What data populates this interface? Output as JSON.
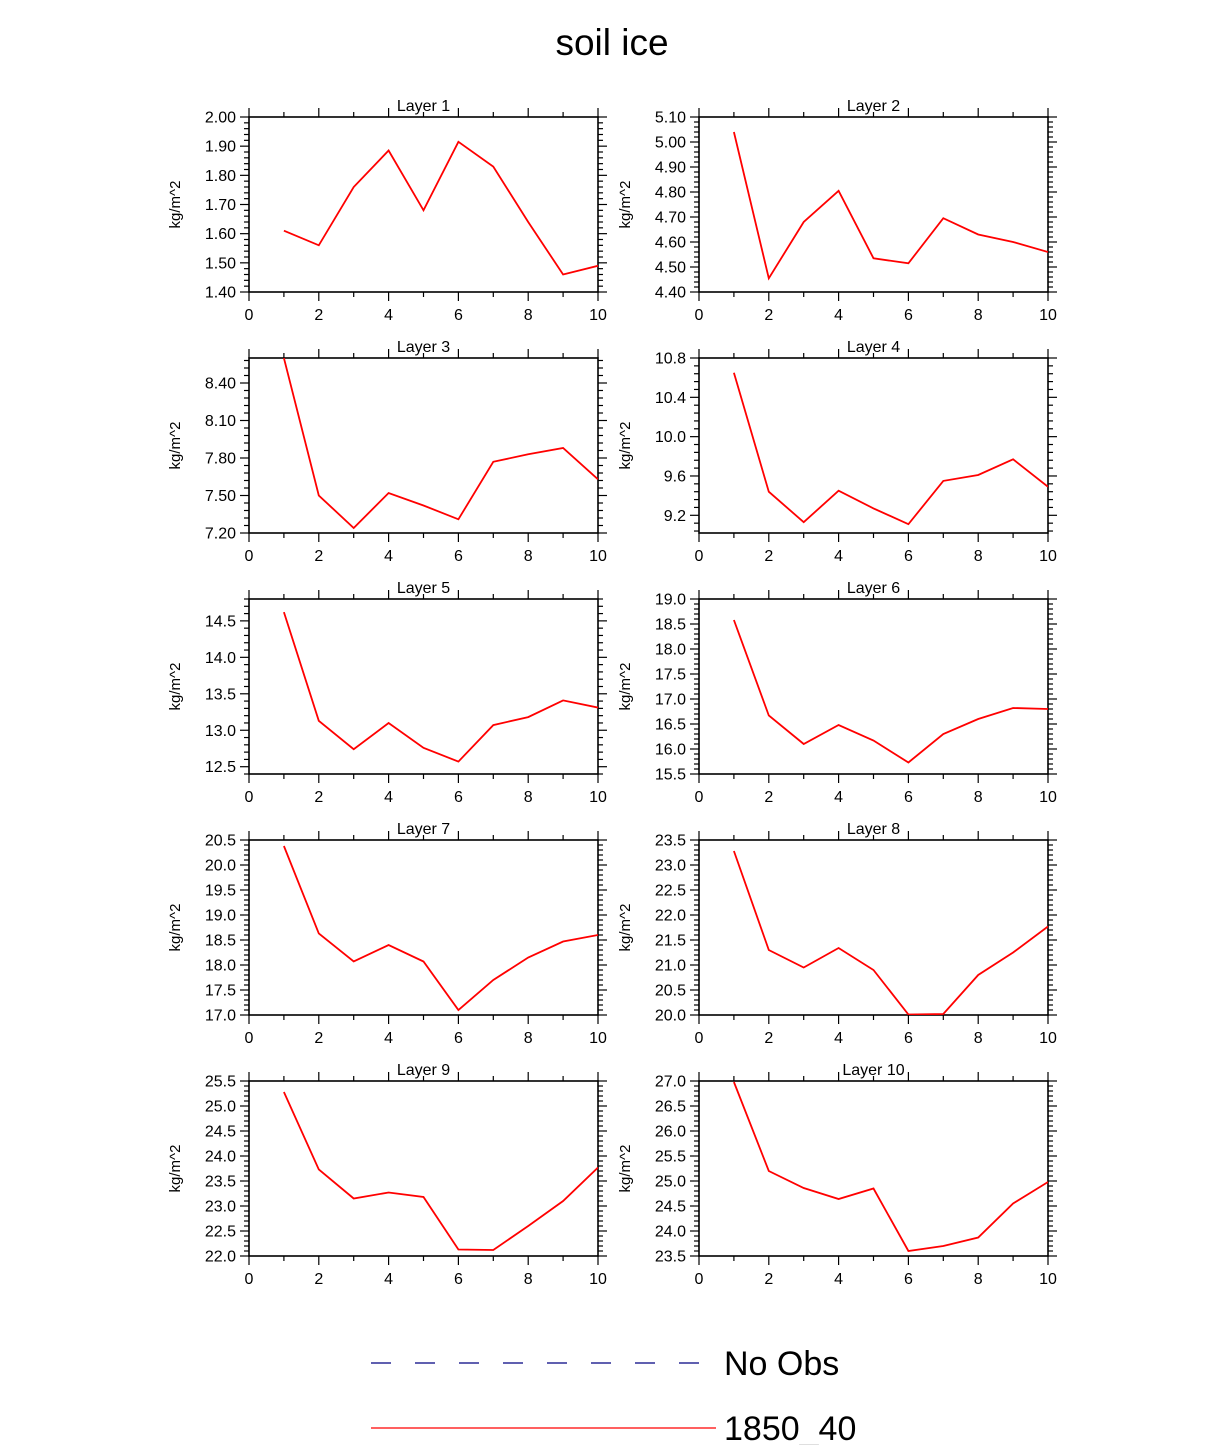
{
  "title": "soil ice",
  "colors": {
    "series": "#ff0000",
    "obs": "#000080",
    "axis": "#000000"
  },
  "chart_data": [
    {
      "type": "line",
      "title": "Layer 1",
      "ylabel": "kg/m^2",
      "xlim": [
        0,
        10
      ],
      "ylim": [
        1.4,
        2.0
      ],
      "xticks": [
        0,
        2,
        4,
        6,
        8,
        10
      ],
      "yticks": [
        1.4,
        1.5,
        1.6,
        1.7,
        1.8,
        1.9,
        2.0
      ],
      "ydecimals": 2,
      "series": [
        {
          "name": "1850_40",
          "x": [
            1,
            2,
            3,
            4,
            5,
            6,
            7,
            8,
            9,
            10
          ],
          "values": [
            1.61,
            1.56,
            1.76,
            1.885,
            1.68,
            1.915,
            1.83,
            1.64,
            1.46,
            1.49
          ]
        }
      ]
    },
    {
      "type": "line",
      "title": "Layer 2",
      "ylabel": "kg/m^2",
      "xlim": [
        0,
        10
      ],
      "ylim": [
        4.4,
        5.1
      ],
      "xticks": [
        0,
        2,
        4,
        6,
        8,
        10
      ],
      "yticks": [
        4.4,
        4.5,
        4.6,
        4.7,
        4.8,
        4.9,
        5.0,
        5.1
      ],
      "ydecimals": 2,
      "series": [
        {
          "name": "1850_40",
          "x": [
            1,
            2,
            3,
            4,
            5,
            6,
            7,
            8,
            9,
            10
          ],
          "values": [
            5.04,
            4.455,
            4.68,
            4.805,
            4.535,
            4.515,
            4.695,
            4.63,
            4.6,
            4.56
          ]
        }
      ]
    },
    {
      "type": "line",
      "title": "Layer 3",
      "ylabel": "kg/m^2",
      "xlim": [
        0,
        10
      ],
      "ylim": [
        7.2,
        8.6
      ],
      "xticks": [
        0,
        2,
        4,
        6,
        8,
        10
      ],
      "yticks": [
        7.2,
        7.5,
        7.8,
        8.1,
        8.4
      ],
      "ydecimals": 2,
      "series": [
        {
          "name": "1850_40",
          "x": [
            1,
            2,
            3,
            4,
            5,
            6,
            7,
            8,
            9,
            10
          ],
          "values": [
            8.6,
            7.5,
            7.24,
            7.52,
            7.42,
            7.31,
            7.77,
            7.83,
            7.88,
            7.63
          ]
        }
      ]
    },
    {
      "type": "line",
      "title": "Layer 4",
      "ylabel": "kg/m^2",
      "xlim": [
        0,
        10
      ],
      "ylim": [
        9.02,
        10.8
      ],
      "xticks": [
        0,
        2,
        4,
        6,
        8,
        10
      ],
      "yticks": [
        9.2,
        9.6,
        10.0,
        10.4,
        10.8
      ],
      "ydecimals": 1,
      "series": [
        {
          "name": "1850_40",
          "x": [
            1,
            2,
            3,
            4,
            5,
            6,
            7,
            8,
            9,
            10
          ],
          "values": [
            10.65,
            9.44,
            9.13,
            9.45,
            9.27,
            9.11,
            9.55,
            9.61,
            9.77,
            9.49
          ]
        }
      ]
    },
    {
      "type": "line",
      "title": "Layer 5",
      "ylabel": "kg/m^2",
      "xlim": [
        0,
        10
      ],
      "ylim": [
        12.4,
        14.8
      ],
      "xticks": [
        0,
        2,
        4,
        6,
        8,
        10
      ],
      "yticks": [
        12.5,
        13.0,
        13.5,
        14.0,
        14.5
      ],
      "ydecimals": 1,
      "series": [
        {
          "name": "1850_40",
          "x": [
            1,
            2,
            3,
            4,
            5,
            6,
            7,
            8,
            9,
            10
          ],
          "values": [
            14.62,
            13.13,
            12.74,
            13.1,
            12.76,
            12.57,
            13.07,
            13.18,
            13.41,
            13.31
          ]
        }
      ]
    },
    {
      "type": "line",
      "title": "Layer 6",
      "ylabel": "kg/m^2",
      "xlim": [
        0,
        10
      ],
      "ylim": [
        15.5,
        19.0
      ],
      "xticks": [
        0,
        2,
        4,
        6,
        8,
        10
      ],
      "yticks": [
        15.5,
        16.0,
        16.5,
        17.0,
        17.5,
        18.0,
        18.5,
        19.0
      ],
      "ydecimals": 1,
      "series": [
        {
          "name": "1850_40",
          "x": [
            1,
            2,
            3,
            4,
            5,
            6,
            7,
            8,
            9,
            10
          ],
          "values": [
            18.58,
            16.67,
            16.1,
            16.48,
            16.17,
            15.73,
            16.3,
            16.6,
            16.82,
            16.8
          ]
        }
      ]
    },
    {
      "type": "line",
      "title": "Layer 7",
      "ylabel": "kg/m^2",
      "xlim": [
        0,
        10
      ],
      "ylim": [
        17.0,
        20.5
      ],
      "xticks": [
        0,
        2,
        4,
        6,
        8,
        10
      ],
      "yticks": [
        17.0,
        17.5,
        18.0,
        18.5,
        19.0,
        19.5,
        20.0,
        20.5
      ],
      "ydecimals": 1,
      "series": [
        {
          "name": "1850_40",
          "x": [
            1,
            2,
            3,
            4,
            5,
            6,
            7,
            8,
            9,
            10
          ],
          "values": [
            20.38,
            18.63,
            18.07,
            18.4,
            18.07,
            17.1,
            17.7,
            18.15,
            18.47,
            18.6
          ]
        }
      ]
    },
    {
      "type": "line",
      "title": "Layer 8",
      "ylabel": "kg/m^2",
      "xlim": [
        0,
        10
      ],
      "ylim": [
        20.0,
        23.5
      ],
      "xticks": [
        0,
        2,
        4,
        6,
        8,
        10
      ],
      "yticks": [
        20.0,
        20.5,
        21.0,
        21.5,
        22.0,
        22.5,
        23.0,
        23.5
      ],
      "ydecimals": 1,
      "series": [
        {
          "name": "1850_40",
          "x": [
            1,
            2,
            3,
            4,
            5,
            6,
            7,
            8,
            9,
            10
          ],
          "values": [
            23.28,
            21.3,
            20.95,
            21.34,
            20.9,
            20.01,
            20.02,
            20.8,
            21.25,
            21.77
          ]
        }
      ]
    },
    {
      "type": "line",
      "title": "Layer 9",
      "ylabel": "kg/m^2",
      "xlim": [
        0,
        10
      ],
      "ylim": [
        22.0,
        25.5
      ],
      "xticks": [
        0,
        2,
        4,
        6,
        8,
        10
      ],
      "yticks": [
        22.0,
        22.5,
        23.0,
        23.5,
        24.0,
        24.5,
        25.0,
        25.5
      ],
      "ydecimals": 1,
      "series": [
        {
          "name": "1850_40",
          "x": [
            1,
            2,
            3,
            4,
            5,
            6,
            7,
            8,
            9,
            10
          ],
          "values": [
            25.28,
            23.73,
            23.15,
            23.27,
            23.18,
            22.13,
            22.12,
            22.6,
            23.1,
            23.77
          ]
        }
      ]
    },
    {
      "type": "line",
      "title": "Layer 10",
      "ylabel": "kg/m^2",
      "xlim": [
        0,
        10
      ],
      "ylim": [
        23.5,
        27.0
      ],
      "xticks": [
        0,
        2,
        4,
        6,
        8,
        10
      ],
      "yticks": [
        23.5,
        24.0,
        24.5,
        25.0,
        25.5,
        26.0,
        26.5,
        27.0
      ],
      "ydecimals": 1,
      "series": [
        {
          "name": "1850_40",
          "x": [
            1,
            2,
            3,
            4,
            5,
            6,
            7,
            8,
            9,
            10
          ],
          "values": [
            26.98,
            25.2,
            24.86,
            24.64,
            24.85,
            23.6,
            23.7,
            23.87,
            24.55,
            24.98
          ]
        }
      ]
    }
  ],
  "legend": [
    {
      "label": "No Obs",
      "style": "dashed",
      "color": "#000080"
    },
    {
      "label": "1850_40",
      "style": "solid",
      "color": "#ff0000"
    }
  ]
}
